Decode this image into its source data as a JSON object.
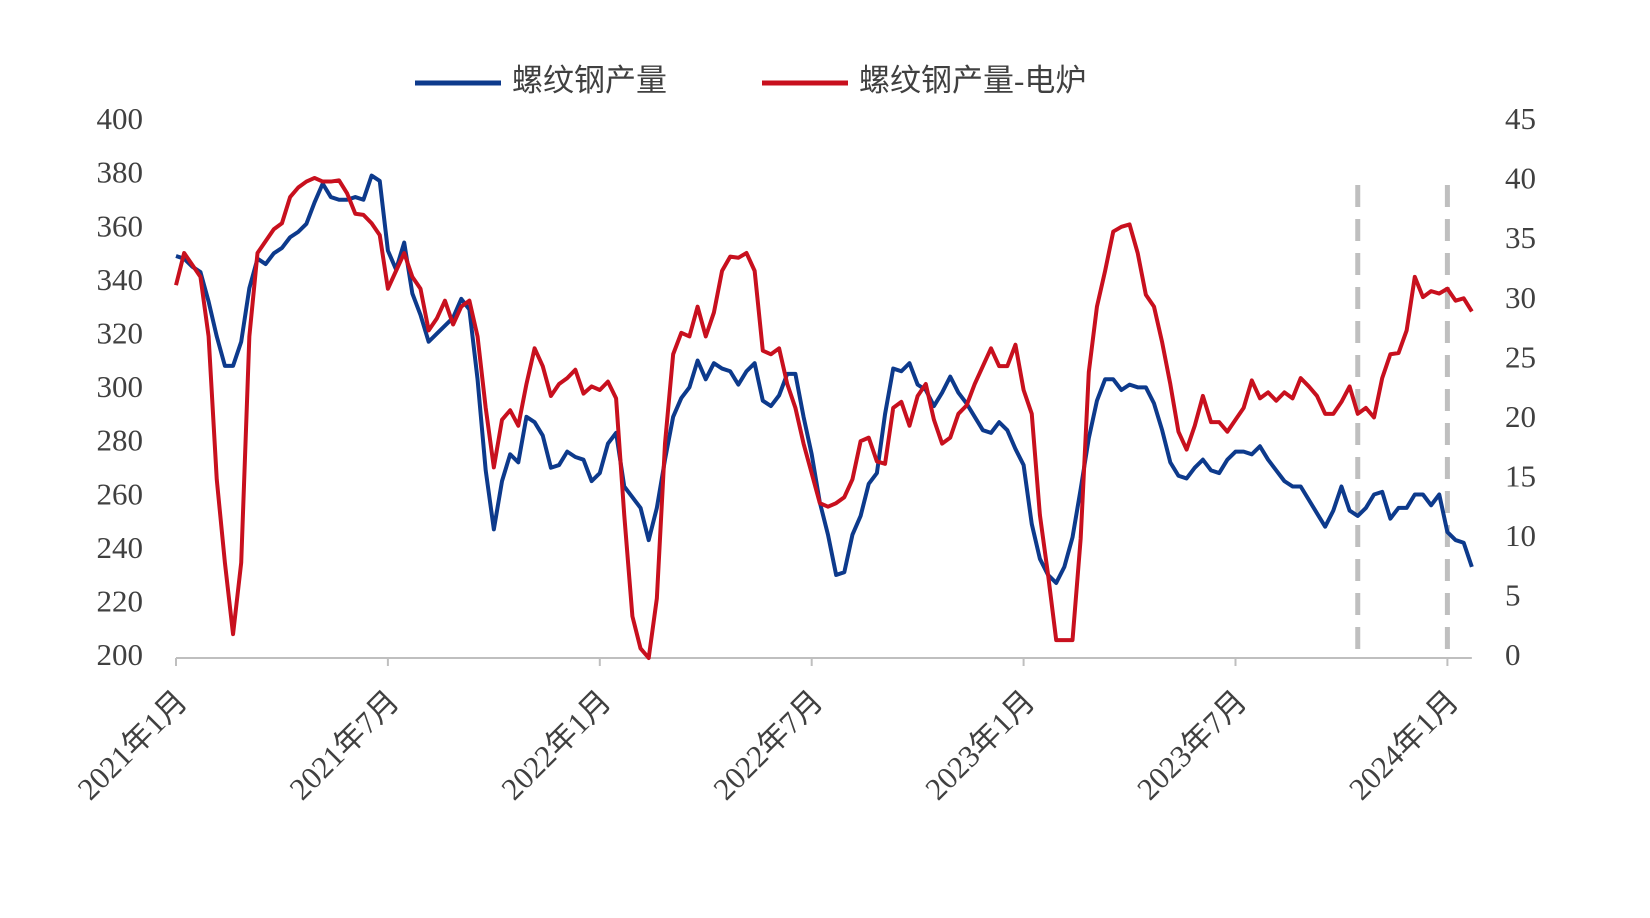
{
  "chart_data": {
    "type": "line",
    "categories": [
      "2021年1月",
      null,
      null,
      null,
      null,
      null,
      null,
      null,
      null,
      null,
      null,
      null,
      null,
      null,
      null,
      null,
      null,
      null,
      null,
      null,
      null,
      null,
      null,
      null,
      null,
      null,
      "2021年7月",
      null,
      null,
      null,
      null,
      null,
      null,
      null,
      null,
      null,
      null,
      null,
      null,
      null,
      null,
      null,
      null,
      null,
      null,
      null,
      null,
      null,
      null,
      null,
      null,
      null,
      "2022年1月",
      null,
      null,
      null,
      null,
      null,
      null,
      null,
      null,
      null,
      null,
      null,
      null,
      null,
      null,
      null,
      null,
      null,
      null,
      null,
      null,
      null,
      null,
      null,
      null,
      null,
      "2022年7月",
      null,
      null,
      null,
      null,
      null,
      null,
      null,
      null,
      null,
      null,
      null,
      null,
      null,
      null,
      null,
      null,
      null,
      null,
      null,
      null,
      null,
      null,
      null,
      null,
      null,
      "2023年1月",
      null,
      null,
      null,
      null,
      null,
      null,
      null,
      null,
      null,
      null,
      null,
      null,
      null,
      null,
      null,
      null,
      null,
      null,
      null,
      null,
      null,
      null,
      null,
      null,
      null,
      "2023年7月",
      null,
      null,
      null,
      null,
      null,
      null,
      null,
      null,
      null,
      null,
      null,
      null,
      null,
      null,
      null,
      null,
      null,
      null,
      null,
      null,
      null,
      null,
      null,
      null,
      null,
      "2024年1月",
      null,
      null,
      null
    ],
    "series": [
      {
        "name": "螺纹钢产量",
        "color": "#0d3a8c",
        "axis": "y",
        "values": [
          350,
          349,
          346,
          344,
          333,
          320,
          309,
          309,
          318,
          338,
          349,
          347,
          351,
          353,
          357,
          359,
          362,
          370,
          377,
          372,
          371,
          371,
          372,
          371,
          380,
          378,
          352,
          345,
          355,
          336,
          328,
          318,
          321,
          324,
          327,
          334,
          330,
          304,
          270,
          248,
          266,
          276,
          273,
          290,
          288,
          283,
          271,
          272,
          277,
          275,
          274,
          266,
          269,
          280,
          284,
          264,
          260,
          256,
          244,
          256,
          274,
          290,
          297,
          301,
          311,
          304,
          310,
          308,
          307,
          302,
          307,
          310,
          296,
          294,
          298,
          306,
          306,
          290,
          276,
          258,
          246,
          231,
          232,
          246,
          253,
          265,
          269,
          291,
          308,
          307,
          310,
          302,
          300,
          294,
          299,
          305,
          299,
          295,
          290,
          285,
          284,
          288,
          285,
          278,
          272,
          250,
          237,
          231,
          228,
          234,
          245,
          263,
          282,
          296,
          304,
          304,
          300,
          302,
          301,
          301,
          295,
          285,
          273,
          268,
          267,
          271,
          274,
          270,
          269,
          274,
          277,
          277,
          276,
          279,
          274,
          270,
          266,
          264,
          264,
          259,
          254,
          249,
          255,
          264,
          255,
          253,
          256,
          261,
          262,
          252,
          256,
          256,
          261,
          261,
          257,
          261,
          247,
          244,
          243,
          234
        ]
      },
      {
        "name": "螺纹钢产量-电炉",
        "color": "#c8101e",
        "axis": "y2",
        "values": [
          31.3,
          34,
          33,
          32,
          27,
          15,
          8,
          2,
          8,
          27,
          34,
          35,
          36,
          36.5,
          38.7,
          39.5,
          40,
          40.3,
          40,
          40,
          40.1,
          39,
          37.3,
          37.2,
          36.5,
          35.5,
          31,
          32.5,
          34,
          32,
          31,
          27.5,
          28.5,
          30,
          28,
          29.5,
          30,
          27,
          21,
          16,
          20,
          20.8,
          19.5,
          23,
          26,
          24.5,
          22,
          23,
          23.5,
          24.2,
          22.2,
          22.8,
          22.5,
          23.2,
          21.8,
          12,
          3.5,
          0.8,
          0,
          5,
          18,
          25.5,
          27.3,
          27,
          29.5,
          27,
          29,
          32.5,
          33.7,
          33.6,
          34,
          32.5,
          25.8,
          25.5,
          26,
          23,
          21,
          18,
          15.5,
          13,
          12.7,
          13,
          13.5,
          15,
          18.2,
          18.5,
          16.5,
          16.3,
          21,
          21.5,
          19.5,
          22,
          23,
          20,
          18,
          18.5,
          20.5,
          21.2,
          23,
          24.5,
          26,
          24.5,
          24.5,
          26.3,
          22.5,
          20.5,
          12,
          7,
          1.5,
          1.5,
          1.5,
          10,
          24,
          29.5,
          32.5,
          35.8,
          36.2,
          36.4,
          34,
          30.5,
          29.5,
          26.5,
          23,
          19,
          17.5,
          19.5,
          22,
          19.8,
          19.8,
          19,
          20,
          21,
          23.3,
          21.8,
          22.3,
          21.6,
          22.3,
          21.8,
          23.5,
          22.8,
          22,
          20.5,
          20.5,
          21.5,
          22.8,
          20.5,
          21,
          20.2,
          23.5,
          25.5,
          25.6,
          27.5,
          32,
          30.3,
          30.8,
          30.6,
          31,
          30,
          30.2,
          29.1
        ]
      }
    ],
    "ylim": [
      200,
      400
    ],
    "yticks": [
      200,
      220,
      240,
      260,
      280,
      300,
      320,
      340,
      360,
      380,
      400
    ],
    "y2lim": [
      0,
      45
    ],
    "y2ticks": [
      0,
      5,
      10,
      15,
      20,
      25,
      30,
      35,
      40,
      45
    ],
    "vlines": [
      145,
      156
    ],
    "legend": "top",
    "grid": false
  }
}
